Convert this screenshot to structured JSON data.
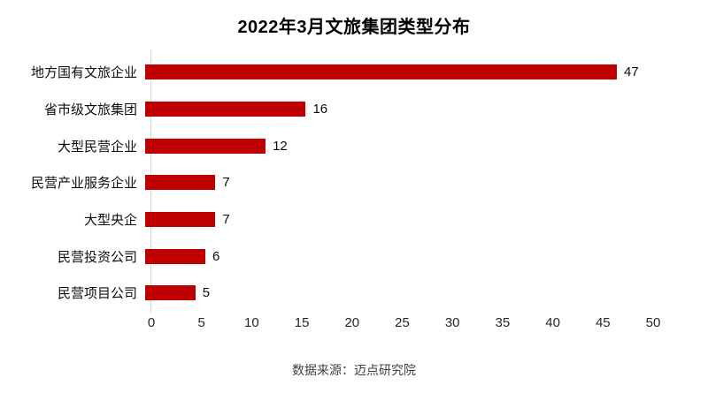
{
  "title": "2022年3月文旅集团类型分布",
  "source_note": "数据来源：迈点研究院",
  "colors": {
    "bar": "#c00000",
    "axis_line": "#d9d9d9",
    "title_text": "#000000",
    "label_text": "#0d0d0d",
    "tick_text": "#262626",
    "source_text": "#404040"
  },
  "chart_data": {
    "type": "bar",
    "orientation": "horizontal",
    "title": "2022年3月文旅集团类型分布",
    "categories": [
      "地方国有文旅企业",
      "省市级文旅集团",
      "大型民营企业",
      "民营产业服务企业",
      "大型央企",
      "民营投资公司",
      "民营项目公司"
    ],
    "values": [
      47,
      16,
      12,
      7,
      7,
      6,
      5
    ],
    "data_labels": [
      47,
      16,
      12,
      7,
      7,
      6,
      5
    ],
    "xlabel": "",
    "ylabel": "",
    "xlim": [
      0,
      50
    ],
    "xticks": [
      0,
      5,
      10,
      15,
      20,
      25,
      30,
      35,
      40,
      45,
      50
    ],
    "grid": false,
    "legend": false,
    "source_note": "数据来源：迈点研究院"
  }
}
